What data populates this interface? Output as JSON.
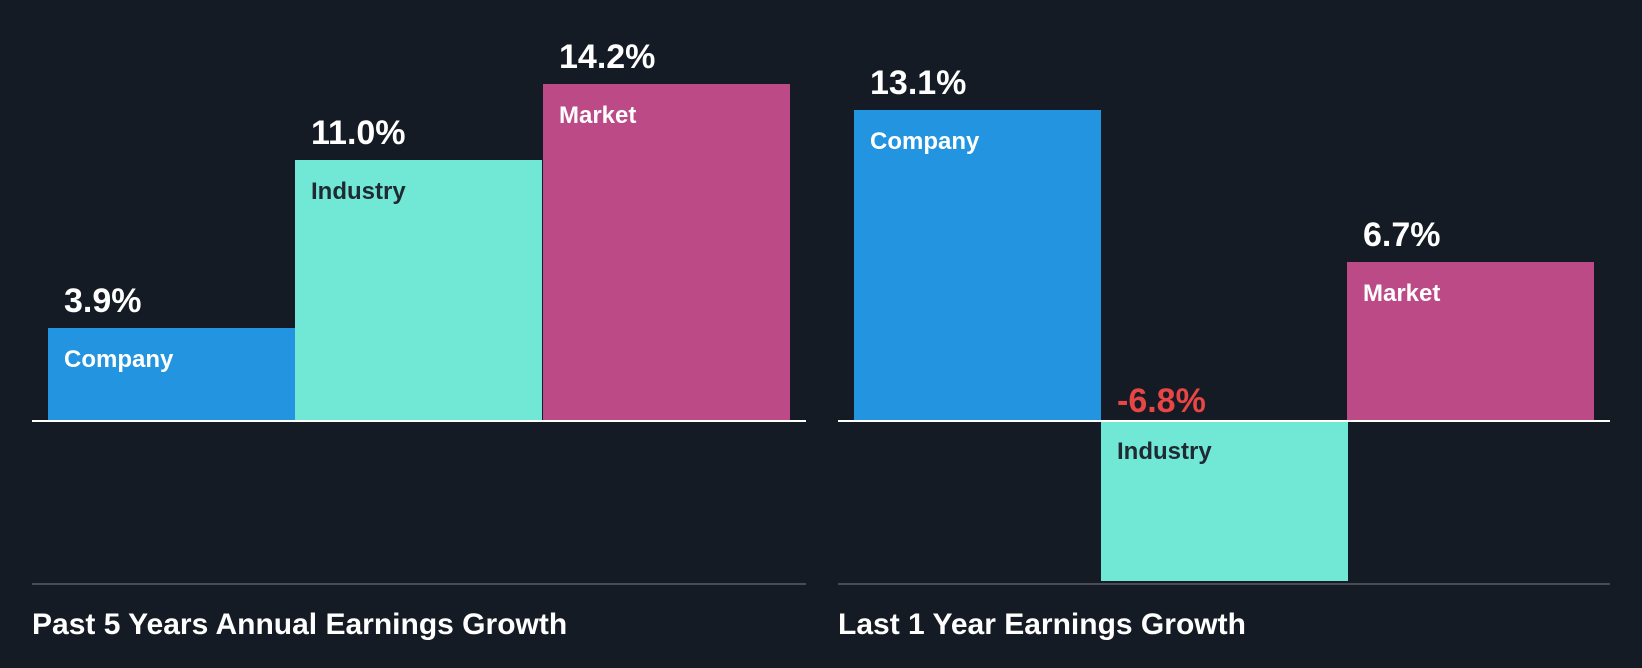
{
  "colors": {
    "background": "#151b24",
    "company": "#2394df",
    "industry": "#71e8d6",
    "market": "#bb4a86",
    "label_on_light": "#1f2a33",
    "label_on_dark": "#ffffff",
    "value_positive": "#ffffff",
    "value_negative": "#e84545",
    "baseline": "#ffffff",
    "bottom_rule": "#474c55"
  },
  "panels": [
    {
      "title": "Past 5 Years Annual Earnings Growth",
      "bars": [
        {
          "name": "Company",
          "value": 3.9,
          "display": "3.9%"
        },
        {
          "name": "Industry",
          "value": 11.0,
          "display": "11.0%"
        },
        {
          "name": "Market",
          "value": 14.2,
          "display": "14.2%"
        }
      ]
    },
    {
      "title": "Last 1 Year Earnings Growth",
      "bars": [
        {
          "name": "Company",
          "value": 13.1,
          "display": "13.1%"
        },
        {
          "name": "Industry",
          "value": -6.8,
          "display": "-6.8%"
        },
        {
          "name": "Market",
          "value": 6.7,
          "display": "6.7%"
        }
      ]
    }
  ],
  "chart_data": [
    {
      "type": "bar",
      "title": "Past 5 Years Annual Earnings Growth",
      "categories": [
        "Company",
        "Industry",
        "Market"
      ],
      "values": [
        3.9,
        11.0,
        14.2
      ],
      "value_labels": [
        "3.9%",
        "11.0%",
        "14.2%"
      ],
      "xlabel": "",
      "ylabel": "",
      "unit": "%",
      "grid": false,
      "legend": "none (labels inside bars)"
    },
    {
      "type": "bar",
      "title": "Last 1 Year Earnings Growth",
      "categories": [
        "Company",
        "Industry",
        "Market"
      ],
      "values": [
        13.1,
        -6.8,
        6.7
      ],
      "value_labels": [
        "13.1%",
        "-6.8%",
        "6.7%"
      ],
      "xlabel": "",
      "ylabel": "",
      "unit": "%",
      "grid": false,
      "legend": "none (labels inside bars)"
    }
  ]
}
